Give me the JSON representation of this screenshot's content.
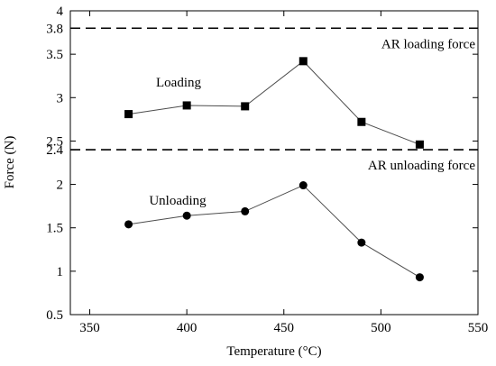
{
  "chart_data": {
    "type": "line",
    "xlabel": "Temperature (°C)",
    "ylabel": "Force (N)",
    "xlim": [
      340,
      550
    ],
    "ylim": [
      0.5,
      4
    ],
    "xticks": [
      350,
      400,
      450,
      500,
      550
    ],
    "yticks": [
      0.5,
      1,
      1.5,
      2,
      2.4,
      2.5,
      3,
      3.5,
      3.8,
      4
    ],
    "ytick_labels": [
      "0.5",
      "1",
      "1.5",
      "2",
      "2.4",
      "2.5",
      "3",
      "3.5",
      "3.8",
      "4"
    ],
    "grid": false,
    "series": [
      {
        "name": "Loading",
        "marker": "square",
        "x": [
          370,
          400,
          430,
          460,
          490,
          520
        ],
        "y": [
          2.81,
          2.91,
          2.9,
          3.42,
          2.72,
          2.46
        ]
      },
      {
        "name": "Unloading",
        "marker": "circle",
        "x": [
          370,
          400,
          430,
          460,
          490,
          520
        ],
        "y": [
          1.54,
          1.64,
          1.69,
          1.99,
          1.33,
          0.93
        ]
      }
    ],
    "reference_lines": [
      {
        "label": "AR loading force",
        "y": 3.8
      },
      {
        "label": "AR unloading force",
        "y": 2.4
      }
    ],
    "colors": {
      "line": "#4d4d4d",
      "marker": "#000000",
      "axis": "#000000"
    }
  }
}
